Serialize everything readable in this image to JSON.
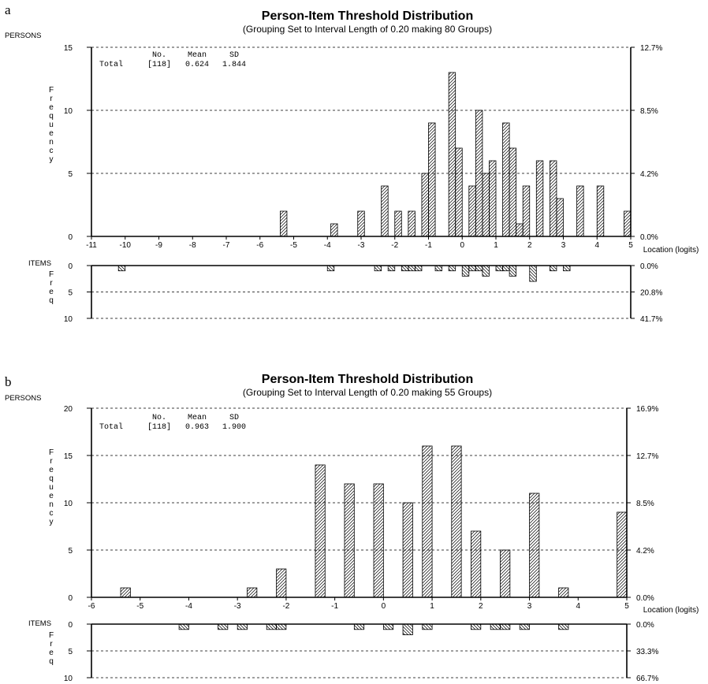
{
  "panels": [
    {
      "letter": "a",
      "title": "Person-Item Threshold Distribution",
      "subtitle": "(Grouping Set to Interval Length of  0.20  making  80  Groups)",
      "persons_label": "PERSONS",
      "items_label": "ITEMS",
      "y_label_persons": "Frequency",
      "y_label_items": "Freq",
      "x_label": "Location (logits)",
      "stats": {
        "header": [
          "No.",
          "Mean",
          "SD"
        ],
        "row_label": "Total",
        "no": "[118]",
        "mean": "0.624",
        "sd": "1.844"
      },
      "x_ticks": [
        "-11",
        "-10",
        "-9",
        "-8",
        "-7",
        "-6",
        "-5",
        "-4",
        "-3",
        "-2",
        "-1",
        "0",
        "1",
        "2",
        "3",
        "4",
        "5"
      ],
      "persons_y_ticks": [
        "0",
        "5",
        "10",
        "15"
      ],
      "persons_pct_ticks": [
        "0.0%",
        "4.2%",
        "8.5%",
        "12.7%"
      ],
      "items_y_ticks": [
        "0",
        "5",
        "10"
      ],
      "items_pct_ticks": [
        "0.0%",
        "20.8%",
        "41.7%"
      ]
    },
    {
      "letter": "b",
      "title": "Person-Item Threshold Distribution",
      "subtitle": "(Grouping Set to Interval Length of  0.20  making  55  Groups)",
      "persons_label": "PERSONS",
      "items_label": "ITEMS",
      "y_label_persons": "Frequency",
      "y_label_items": "Freq",
      "x_label": "Location (logits)",
      "stats": {
        "header": [
          "No.",
          "Mean",
          "SD"
        ],
        "row_label": "Total",
        "no": "[118]",
        "mean": "0.963",
        "sd": "1.900"
      },
      "x_ticks": [
        "-6",
        "-5",
        "-4",
        "-3",
        "-2",
        "-1",
        "0",
        "1",
        "2",
        "3",
        "4",
        "5"
      ],
      "persons_y_ticks": [
        "0",
        "5",
        "10",
        "15",
        "20"
      ],
      "persons_pct_ticks": [
        "0.0%",
        "4.2%",
        "8.5%",
        "12.7%",
        "16.9%"
      ],
      "items_y_ticks": [
        "0",
        "5",
        "10"
      ],
      "items_pct_ticks": [
        "0.0%",
        "33.3%",
        "66.7%"
      ]
    }
  ],
  "chart_data": [
    {
      "type": "bar",
      "title": "Person-Item Threshold Distribution",
      "subtitle": "(Grouping Set to Interval Length of  0.20  making  80  Groups)",
      "xlabel": "Location (logits)",
      "ylabel": "Frequency",
      "xlim": [
        -11,
        5
      ],
      "ylim_persons": [
        0,
        15
      ],
      "ylim_items": [
        0,
        10
      ],
      "bin_width": 0.2,
      "grid": "horizontal dashed",
      "persons": [
        {
          "x": -5.3,
          "y": 2
        },
        {
          "x": -3.8,
          "y": 1
        },
        {
          "x": -3.0,
          "y": 2
        },
        {
          "x": -2.3,
          "y": 4
        },
        {
          "x": -1.9,
          "y": 2
        },
        {
          "x": -1.5,
          "y": 2
        },
        {
          "x": -1.1,
          "y": 5
        },
        {
          "x": -0.9,
          "y": 9
        },
        {
          "x": -0.3,
          "y": 13
        },
        {
          "x": -0.1,
          "y": 7
        },
        {
          "x": 0.3,
          "y": 4
        },
        {
          "x": 0.5,
          "y": 10
        },
        {
          "x": 0.7,
          "y": 5
        },
        {
          "x": 0.9,
          "y": 6
        },
        {
          "x": 1.3,
          "y": 9
        },
        {
          "x": 1.5,
          "y": 7
        },
        {
          "x": 1.7,
          "y": 1
        },
        {
          "x": 1.9,
          "y": 4
        },
        {
          "x": 2.3,
          "y": 6
        },
        {
          "x": 2.7,
          "y": 6
        },
        {
          "x": 2.9,
          "y": 3
        },
        {
          "x": 3.5,
          "y": 4
        },
        {
          "x": 4.1,
          "y": 4
        },
        {
          "x": 4.9,
          "y": 2
        }
      ],
      "items": [
        {
          "x": -10.1,
          "y": 1
        },
        {
          "x": -3.9,
          "y": 1
        },
        {
          "x": -2.5,
          "y": 1
        },
        {
          "x": -2.1,
          "y": 1
        },
        {
          "x": -1.7,
          "y": 1
        },
        {
          "x": -1.5,
          "y": 1
        },
        {
          "x": -1.3,
          "y": 1
        },
        {
          "x": -0.7,
          "y": 1
        },
        {
          "x": -0.3,
          "y": 1
        },
        {
          "x": 0.1,
          "y": 2
        },
        {
          "x": 0.3,
          "y": 1
        },
        {
          "x": 0.5,
          "y": 1
        },
        {
          "x": 0.7,
          "y": 2
        },
        {
          "x": 1.1,
          "y": 1
        },
        {
          "x": 1.3,
          "y": 1
        },
        {
          "x": 1.5,
          "y": 2
        },
        {
          "x": 2.1,
          "y": 3
        },
        {
          "x": 2.7,
          "y": 1
        },
        {
          "x": 3.1,
          "y": 1
        }
      ]
    },
    {
      "type": "bar",
      "title": "Person-Item Threshold Distribution",
      "subtitle": "(Grouping Set to Interval Length of  0.20  making  55  Groups)",
      "xlabel": "Location (logits)",
      "ylabel": "Frequency",
      "xlim": [
        -6,
        5
      ],
      "ylim_persons": [
        0,
        20
      ],
      "ylim_items": [
        0,
        10
      ],
      "bin_width": 0.2,
      "grid": "horizontal dashed",
      "persons": [
        {
          "x": -5.3,
          "y": 1
        },
        {
          "x": -2.7,
          "y": 1
        },
        {
          "x": -2.1,
          "y": 3
        },
        {
          "x": -1.3,
          "y": 14
        },
        {
          "x": -0.7,
          "y": 12
        },
        {
          "x": -0.1,
          "y": 12
        },
        {
          "x": 0.5,
          "y": 10
        },
        {
          "x": 0.9,
          "y": 16
        },
        {
          "x": 1.5,
          "y": 16
        },
        {
          "x": 1.9,
          "y": 7
        },
        {
          "x": 2.5,
          "y": 5
        },
        {
          "x": 3.1,
          "y": 11
        },
        {
          "x": 3.7,
          "y": 1
        },
        {
          "x": 4.9,
          "y": 9
        }
      ],
      "items": [
        {
          "x": -4.1,
          "y": 1
        },
        {
          "x": -3.3,
          "y": 1
        },
        {
          "x": -2.9,
          "y": 1
        },
        {
          "x": -2.3,
          "y": 1
        },
        {
          "x": -2.1,
          "y": 1
        },
        {
          "x": -0.5,
          "y": 1
        },
        {
          "x": 0.1,
          "y": 1
        },
        {
          "x": 0.5,
          "y": 2
        },
        {
          "x": 0.9,
          "y": 1
        },
        {
          "x": 1.9,
          "y": 1
        },
        {
          "x": 2.3,
          "y": 1
        },
        {
          "x": 2.5,
          "y": 1
        },
        {
          "x": 2.9,
          "y": 1
        },
        {
          "x": 3.7,
          "y": 1
        }
      ]
    }
  ]
}
